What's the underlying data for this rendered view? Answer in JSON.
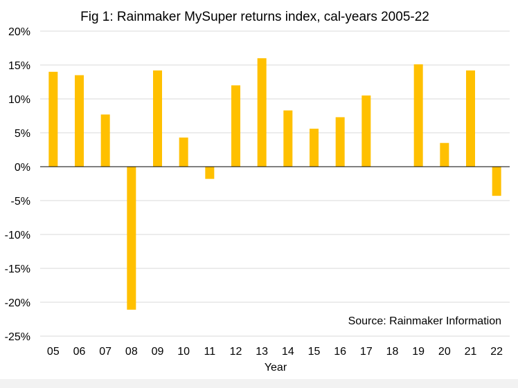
{
  "chart_data": {
    "type": "bar",
    "title": "Fig 1:   Rainmaker MySuper returns index, cal-years 2005-22",
    "xlabel": "Year",
    "ylabel": "",
    "annotation": "Source: Rainmaker Information",
    "categories": [
      "05",
      "06",
      "07",
      "08",
      "09",
      "10",
      "11",
      "12",
      "13",
      "14",
      "15",
      "16",
      "17",
      "18",
      "19",
      "20",
      "21",
      "22"
    ],
    "values": [
      14.0,
      13.5,
      7.7,
      -21.1,
      14.2,
      4.3,
      -1.8,
      12.0,
      16.0,
      8.3,
      5.6,
      7.3,
      10.5,
      0.0,
      15.1,
      3.5,
      14.2,
      -4.3
    ],
    "ylim": [
      -25,
      20
    ],
    "yticks": [
      20,
      15,
      10,
      5,
      0,
      -5,
      -10,
      -15,
      -20,
      -25
    ],
    "ytick_labels": [
      "20%",
      "15%",
      "10%",
      "5%",
      "0%",
      "-5%",
      "-10%",
      "-15%",
      "-20%",
      "-25%"
    ],
    "grid": true,
    "colors": {
      "bar": "#ffc000",
      "grid": "#d9d9d9",
      "axis": "#000000"
    }
  }
}
